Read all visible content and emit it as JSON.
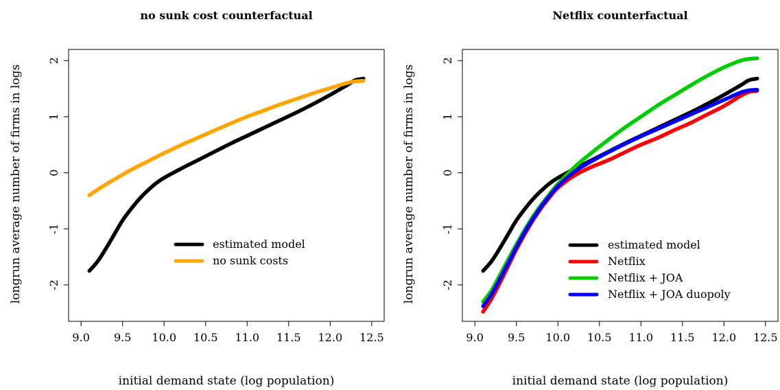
{
  "chart_data": [
    {
      "type": "line",
      "title": "no sunk cost counterfactual",
      "xlabel": "initial demand state (log population)",
      "ylabel": "longrun average number of firms in logs",
      "xlim": [
        8.85,
        12.65
      ],
      "ylim": [
        -2.65,
        2.2
      ],
      "xticks": [
        "9.0",
        "9.5",
        "10.0",
        "10.5",
        "11.0",
        "11.5",
        "12.0",
        "12.5"
      ],
      "yticks": [
        "-2",
        "-1",
        "0",
        "1",
        "2"
      ],
      "legend_position": "bottom-right",
      "series": [
        {
          "name": "estimated model",
          "color": "#000000",
          "x": [
            9.1,
            9.2,
            9.3,
            9.4,
            9.5,
            9.6,
            9.7,
            9.8,
            9.9,
            10.0,
            10.2,
            10.4,
            10.6,
            10.8,
            11.0,
            11.2,
            11.4,
            11.6,
            11.8,
            12.0,
            12.2,
            12.3,
            12.4
          ],
          "y": [
            -1.75,
            -1.58,
            -1.35,
            -1.1,
            -0.85,
            -0.65,
            -0.47,
            -0.32,
            -0.19,
            -0.09,
            0.07,
            0.22,
            0.37,
            0.52,
            0.66,
            0.8,
            0.94,
            1.08,
            1.23,
            1.39,
            1.56,
            1.65,
            1.68
          ]
        },
        {
          "name": "no sunk costs",
          "color": "#ffa500",
          "x": [
            9.1,
            9.2,
            9.4,
            9.6,
            9.8,
            10.0,
            10.2,
            10.4,
            10.6,
            10.8,
            11.0,
            11.2,
            11.4,
            11.6,
            11.8,
            12.0,
            12.2,
            12.3,
            12.4
          ],
          "y": [
            -0.4,
            -0.3,
            -0.12,
            0.05,
            0.2,
            0.35,
            0.49,
            0.62,
            0.75,
            0.88,
            1.0,
            1.11,
            1.22,
            1.32,
            1.42,
            1.51,
            1.6,
            1.63,
            1.64
          ]
        }
      ]
    },
    {
      "type": "line",
      "title": "Netflix counterfactual",
      "xlabel": "initial demand state (log population)",
      "ylabel": "longrun average number of firms in logs",
      "xlim": [
        8.85,
        12.65
      ],
      "ylim": [
        -2.65,
        2.2
      ],
      "xticks": [
        "9.0",
        "9.5",
        "10.0",
        "10.5",
        "11.0",
        "11.5",
        "12.0",
        "12.5"
      ],
      "yticks": [
        "-2",
        "-1",
        "0",
        "1",
        "2"
      ],
      "legend_position": "bottom-right",
      "series": [
        {
          "name": "estimated model",
          "color": "#000000",
          "x": [
            9.1,
            9.2,
            9.3,
            9.4,
            9.5,
            9.6,
            9.7,
            9.8,
            9.9,
            10.0,
            10.2,
            10.4,
            10.6,
            10.8,
            11.0,
            11.2,
            11.4,
            11.6,
            11.8,
            12.0,
            12.2,
            12.3,
            12.4
          ],
          "y": [
            -1.75,
            -1.58,
            -1.35,
            -1.1,
            -0.85,
            -0.65,
            -0.47,
            -0.32,
            -0.19,
            -0.09,
            0.07,
            0.22,
            0.37,
            0.52,
            0.66,
            0.8,
            0.94,
            1.08,
            1.23,
            1.39,
            1.56,
            1.65,
            1.68
          ]
        },
        {
          "name": "Netflix",
          "color": "#ff0000",
          "x": [
            9.1,
            9.2,
            9.3,
            9.4,
            9.5,
            9.6,
            9.7,
            9.8,
            9.9,
            10.0,
            10.2,
            10.4,
            10.6,
            10.8,
            11.0,
            11.2,
            11.4,
            11.6,
            11.8,
            12.0,
            12.2,
            12.3,
            12.4
          ],
          "y": [
            -2.48,
            -2.25,
            -1.97,
            -1.67,
            -1.37,
            -1.1,
            -0.85,
            -0.63,
            -0.44,
            -0.27,
            -0.05,
            0.1,
            0.22,
            0.36,
            0.5,
            0.62,
            0.76,
            0.89,
            1.04,
            1.19,
            1.37,
            1.44,
            1.46
          ]
        },
        {
          "name": "Netflix + JOA",
          "color": "#00cd00",
          "x": [
            9.1,
            9.2,
            9.3,
            9.4,
            9.5,
            9.6,
            9.7,
            9.8,
            9.9,
            10.0,
            10.2,
            10.4,
            10.6,
            10.8,
            11.0,
            11.2,
            11.4,
            11.6,
            11.8,
            12.0,
            12.2,
            12.3,
            12.4
          ],
          "y": [
            -2.3,
            -2.1,
            -1.83,
            -1.55,
            -1.28,
            -1.02,
            -0.78,
            -0.57,
            -0.38,
            -0.2,
            0.1,
            0.35,
            0.58,
            0.8,
            1.0,
            1.2,
            1.38,
            1.56,
            1.73,
            1.88,
            2.0,
            2.03,
            2.04
          ]
        },
        {
          "name": "Netflix + JOA duopoly",
          "color": "#0000ff",
          "x": [
            9.1,
            9.2,
            9.3,
            9.4,
            9.5,
            9.6,
            9.7,
            9.8,
            9.9,
            10.0,
            10.2,
            10.4,
            10.6,
            10.8,
            11.0,
            11.2,
            11.4,
            11.6,
            11.8,
            12.0,
            12.2,
            12.3,
            12.4
          ],
          "y": [
            -2.38,
            -2.17,
            -1.9,
            -1.62,
            -1.33,
            -1.06,
            -0.82,
            -0.6,
            -0.41,
            -0.24,
            0.02,
            0.2,
            0.36,
            0.51,
            0.65,
            0.78,
            0.91,
            1.04,
            1.17,
            1.3,
            1.43,
            1.47,
            1.48
          ]
        }
      ]
    }
  ]
}
